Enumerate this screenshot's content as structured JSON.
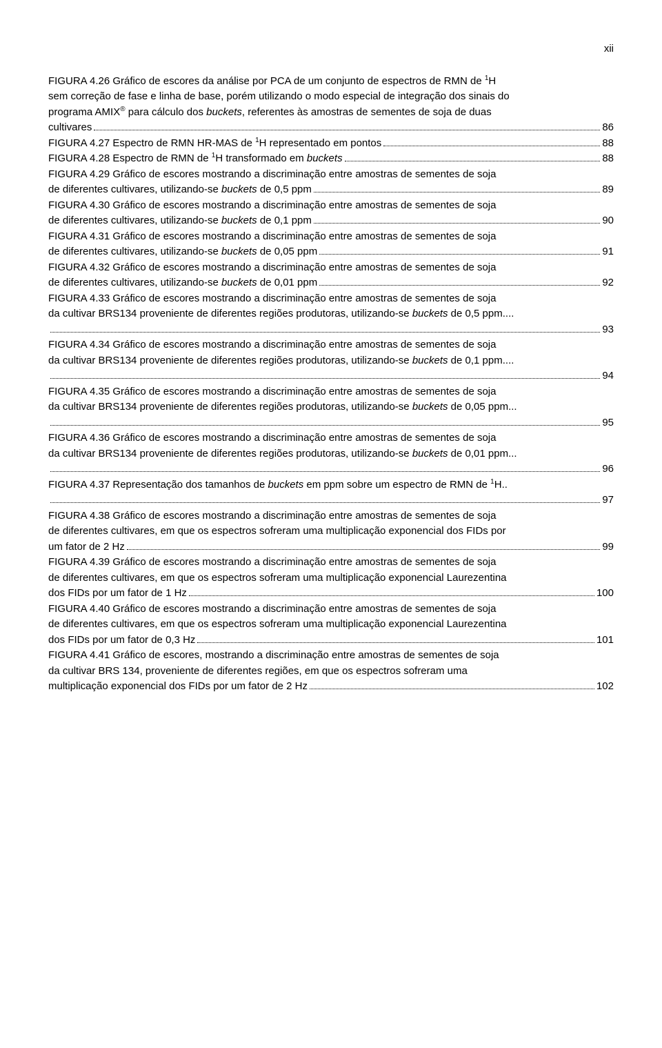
{
  "page_number": "xii",
  "entries": [
    {
      "lines": [
        "FIGURA 4.26 Gráfico de escores da análise por PCA de um conjunto de espectros de RMN de {sup1}H",
        "sem correção de fase e linha de base, porém utilizando o modo especial de integração dos sinais do",
        "programa AMIX{sup®} para cálculo dos {ibuckets}, referentes às amostras de sementes de soja de duas"
      ],
      "last": "cultivares",
      "page": "86"
    },
    {
      "lines": [],
      "last": "FIGURA 4.27 Espectro de RMN HR-MAS de {sup1}H representado em pontos",
      "page": "88"
    },
    {
      "lines": [],
      "last": "FIGURA 4.28 Espectro de RMN de {sup1}H transformado em {ibuckets}",
      "page": "88"
    },
    {
      "lines": [
        "FIGURA 4.29 Gráfico de escores mostrando a discriminação entre amostras de sementes de soja"
      ],
      "last": "de diferentes cultivares, utilizando-se {ibuckets} de 0,5 ppm",
      "page": "89"
    },
    {
      "lines": [
        "FIGURA 4.30 Gráfico de escores mostrando a discriminação entre amostras de sementes de soja"
      ],
      "last": "de diferentes cultivares, utilizando-se {ibuckets} de 0,1 ppm",
      "page": "90"
    },
    {
      "lines": [
        "FIGURA 4.31 Gráfico de escores mostrando a discriminação entre amostras de sementes de soja"
      ],
      "last": "de diferentes cultivares, utilizando-se {ibuckets} de 0,05 ppm",
      "page": "91"
    },
    {
      "lines": [
        "FIGURA 4.32 Gráfico de escores mostrando a discriminação entre amostras de sementes de soja"
      ],
      "last": "de diferentes cultivares, utilizando-se {ibuckets} de 0,01 ppm",
      "page": "92"
    },
    {
      "lines": [
        "FIGURA 4.33 Gráfico de escores mostrando a discriminação entre amostras de sementes de soja",
        "da cultivar BRS134 proveniente de diferentes regiões produtoras, utilizando-se {ibuckets} de 0,5 ppm...."
      ],
      "last": "",
      "page": "93"
    },
    {
      "lines": [
        "FIGURA 4.34 Gráfico de escores mostrando a discriminação entre amostras de sementes de soja",
        "da cultivar BRS134 proveniente de diferentes regiões produtoras, utilizando-se {ibuckets} de 0,1 ppm...."
      ],
      "last": "",
      "page": "94"
    },
    {
      "lines": [
        "FIGURA 4.35 Gráfico de escores mostrando a discriminação entre amostras de sementes de soja",
        "da cultivar BRS134 proveniente de diferentes regiões produtoras, utilizando-se {ibuckets} de 0,05 ppm..."
      ],
      "last": "",
      "page": "95"
    },
    {
      "lines": [
        "FIGURA 4.36 Gráfico de escores mostrando a discriminação entre amostras de sementes de soja",
        "da cultivar BRS134 proveniente de diferentes regiões produtoras, utilizando-se {ibuckets} de 0,01 ppm..."
      ],
      "last": "",
      "page": "96"
    },
    {
      "lines": [
        "FIGURA 4.37 Representação dos tamanhos de {ibuckets} em ppm sobre um espectro de RMN de {sup1}H.."
      ],
      "last": "",
      "page": "97"
    },
    {
      "lines": [
        "FIGURA 4.38 Gráfico de escores mostrando a discriminação entre amostras de sementes de soja",
        "de diferentes cultivares, em que os espectros sofreram uma multiplicação exponencial dos FIDs por"
      ],
      "last": "um fator de 2 Hz",
      "page": "99"
    },
    {
      "lines": [
        "FIGURA 4.39 Gráfico de escores mostrando a discriminação entre amostras de sementes de soja",
        "de diferentes cultivares, em que os espectros sofreram uma multiplicação exponencial Laurezentina"
      ],
      "last": "dos FIDs por um fator de 1 Hz",
      "page": "100"
    },
    {
      "lines": [
        "FIGURA 4.40 Gráfico de escores mostrando a discriminação entre amostras de sementes de soja",
        "de diferentes cultivares, em que os espectros sofreram uma multiplicação exponencial Laurezentina"
      ],
      "last": "dos FIDs por um fator de 0,3 Hz",
      "page": "101"
    },
    {
      "lines": [
        "FIGURA 4.41 Gráfico de escores, mostrando a discriminação entre amostras de sementes de soja",
        "da cultivar BRS 134, proveniente de diferentes regiões, em que os espectros sofreram uma"
      ],
      "last": "multiplicação exponencial dos FIDs por um fator de 2 Hz",
      "page": "102"
    }
  ]
}
